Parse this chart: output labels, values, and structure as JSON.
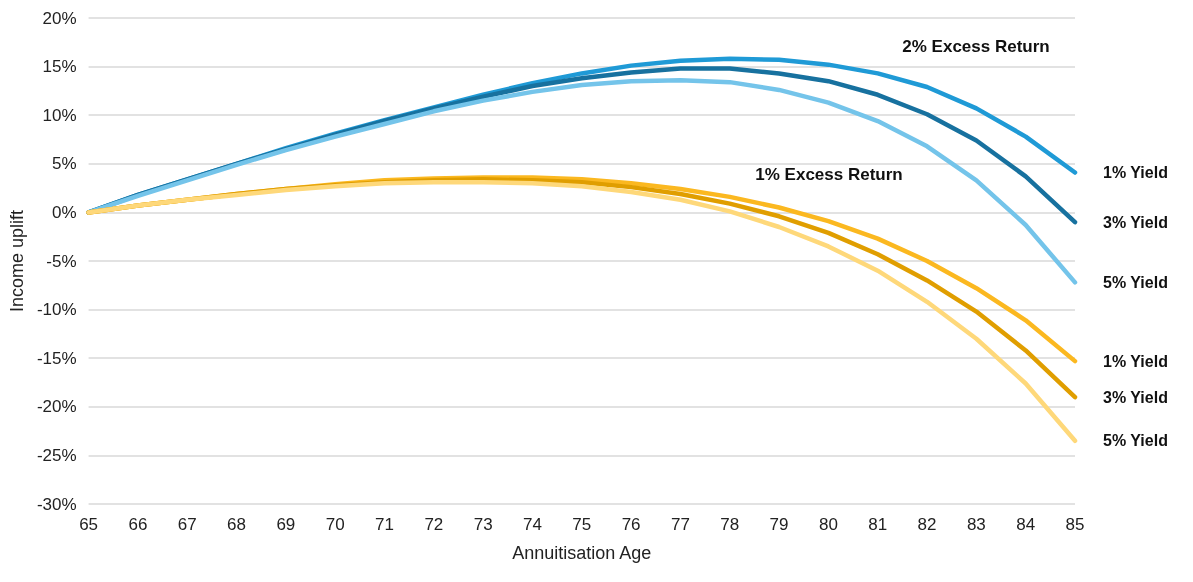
{
  "chart_data": {
    "type": "line",
    "xlabel": "Annuitisation Age",
    "ylabel": "Income uplift",
    "x": [
      65,
      66,
      67,
      68,
      69,
      70,
      71,
      72,
      73,
      74,
      75,
      76,
      77,
      78,
      79,
      80,
      81,
      82,
      83,
      84,
      85
    ],
    "series": [
      {
        "name": "1% Yield",
        "color": "#1f9ad6",
        "values": [
          0,
          1.8,
          3.4,
          5.0,
          6.6,
          8.1,
          9.5,
          10.8,
          12.1,
          13.3,
          14.3,
          15.1,
          15.6,
          15.8,
          15.7,
          15.2,
          14.3,
          12.9,
          10.7,
          7.8,
          4.1
        ]
      },
      {
        "name": "3% Yield",
        "color": "#17719f",
        "values": [
          0,
          1.8,
          3.4,
          5.0,
          6.5,
          8.0,
          9.4,
          10.7,
          11.9,
          13.0,
          13.8,
          14.4,
          14.8,
          14.8,
          14.3,
          13.5,
          12.1,
          10.1,
          7.4,
          3.7,
          -1.0
        ]
      },
      {
        "name": "5% Yield",
        "color": "#74c4ea",
        "values": [
          0,
          1.7,
          3.3,
          4.9,
          6.4,
          7.8,
          9.1,
          10.4,
          11.5,
          12.4,
          13.1,
          13.5,
          13.6,
          13.4,
          12.6,
          11.3,
          9.4,
          6.8,
          3.3,
          -1.3,
          -7.2
        ]
      },
      {
        "name": "1% Yield",
        "color": "#fbb820",
        "values": [
          0,
          0.7,
          1.3,
          1.9,
          2.4,
          2.9,
          3.3,
          3.5,
          3.6,
          3.6,
          3.4,
          3.0,
          2.4,
          1.6,
          0.5,
          -0.9,
          -2.7,
          -5.0,
          -7.8,
          -11.1,
          -15.3
        ]
      },
      {
        "name": "3% Yield",
        "color": "#e09e00",
        "values": [
          0,
          0.7,
          1.3,
          1.9,
          2.4,
          2.8,
          3.1,
          3.3,
          3.4,
          3.3,
          3.1,
          2.6,
          1.9,
          0.9,
          -0.4,
          -2.1,
          -4.3,
          -7.0,
          -10.2,
          -14.2,
          -19.0
        ]
      },
      {
        "name": "5% Yield",
        "color": "#fed87a",
        "values": [
          0,
          0.7,
          1.3,
          1.8,
          2.3,
          2.7,
          3.0,
          3.1,
          3.1,
          3.0,
          2.7,
          2.1,
          1.3,
          0.1,
          -1.5,
          -3.5,
          -6.0,
          -9.2,
          -13.0,
          -17.6,
          -23.5
        ]
      }
    ],
    "annotations": [
      "2% Excess Return",
      "1% Excess Return"
    ],
    "xlim": [
      65,
      85
    ],
    "xticks": [
      65,
      66,
      67,
      68,
      69,
      70,
      71,
      72,
      73,
      74,
      75,
      76,
      77,
      78,
      79,
      80,
      81,
      82,
      83,
      84,
      85
    ],
    "ylim": [
      -30,
      20
    ],
    "yticks": [
      {
        "value": -30,
        "label": "-30%"
      },
      {
        "value": -25,
        "label": "-25%"
      },
      {
        "value": -20,
        "label": "-20%"
      },
      {
        "value": -15,
        "label": "-15%"
      },
      {
        "value": -10,
        "label": "-10%"
      },
      {
        "value": -5,
        "label": "-5%"
      },
      {
        "value": 0,
        "label": "0%"
      },
      {
        "value": 5,
        "label": "5%"
      },
      {
        "value": 10,
        "label": "10%"
      },
      {
        "value": 15,
        "label": "15%"
      },
      {
        "value": 20,
        "label": "20%"
      }
    ],
    "grid": "y",
    "legend": false,
    "marker": "none",
    "line_style": "solid"
  }
}
